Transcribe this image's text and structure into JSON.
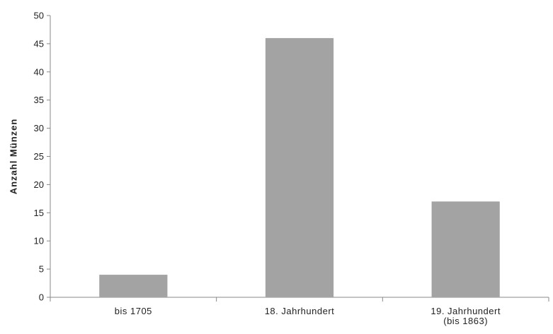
{
  "chart_data": {
    "type": "bar",
    "categories": [
      "bis 1705",
      "18. Jahrhundert",
      "19. Jahrhundert\n(bis 1863)"
    ],
    "values": [
      4,
      46,
      17
    ],
    "title": "",
    "xlabel": "",
    "ylabel": "Anzahl Münzen",
    "ylim": [
      0,
      50
    ],
    "yticks": [
      0,
      5,
      10,
      15,
      20,
      25,
      30,
      35,
      40,
      45,
      50
    ],
    "grid": false,
    "legend": "none",
    "bar_color": "#a3a3a3",
    "axis_color": "#888888"
  }
}
